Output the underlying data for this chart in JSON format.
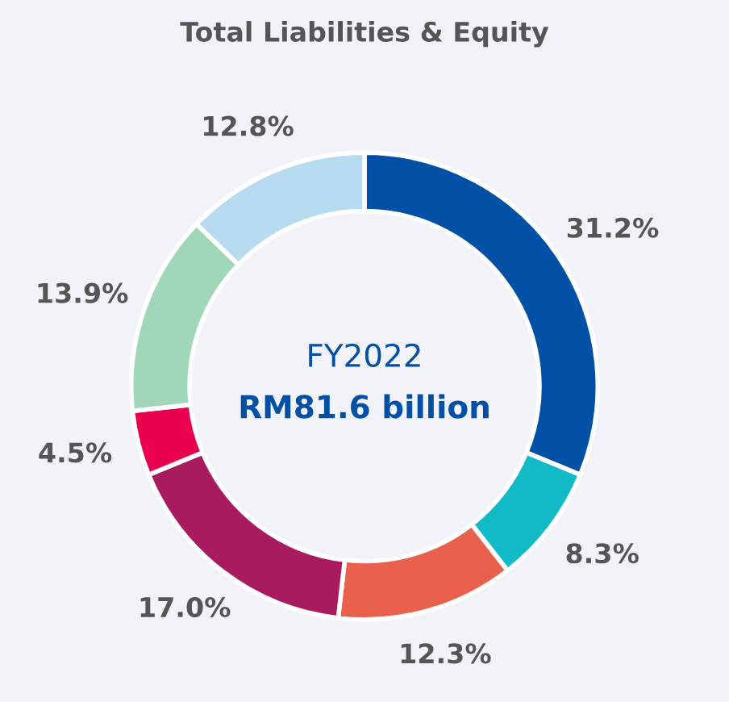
{
  "chart_data": {
    "type": "donut",
    "title": "Total Liabilities & Equity",
    "categories": [
      null,
      null,
      null,
      null,
      null,
      null,
      null
    ],
    "values": [
      31.2,
      8.3,
      12.3,
      17.0,
      4.5,
      13.9,
      12.8
    ],
    "colors": [
      "#0050a5",
      "#12b9c6",
      "#e9604c",
      "#a81b5e",
      "#e8004e",
      "#9fd7b8",
      "#b7dcf0"
    ],
    "value_labels": [
      "31.2%",
      "8.3%",
      "12.3%",
      "17.0%",
      "4.5%",
      "13.9%",
      "12.8%"
    ],
    "annotations": [
      "FY2022",
      "RM81.6 billion"
    ]
  }
}
